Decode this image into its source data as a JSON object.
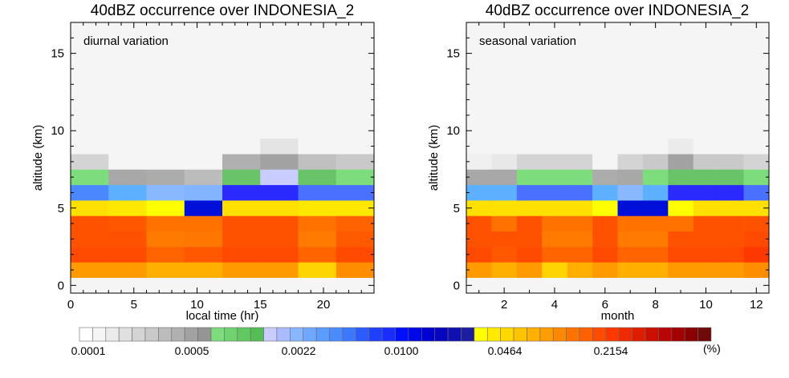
{
  "colors": {
    "background_cell": "#f5f5f5",
    "cb_palette": [
      "#ffffff",
      "#f5f5f5",
      "#ebebeb",
      "#e0e0e0",
      "#d4d4d4",
      "#c9c9c9",
      "#bcbcbc",
      "#b0b0b0",
      "#a2a2a2",
      "#959595",
      "#7ddd7d",
      "#6fd36f",
      "#62c862",
      "#55bd55",
      "#c9ccff",
      "#a9bcff",
      "#8ab5ff",
      "#70a8ff",
      "#5a9cff",
      "#4a8cff",
      "#3c78ff",
      "#2c5cff",
      "#2040ff",
      "#1a2dff",
      "#0010ff",
      "#0008e8",
      "#0000d0",
      "#0606bf",
      "#1010b0",
      "#1d1da0",
      "#ffff00",
      "#ffea00",
      "#ffd800",
      "#ffc400",
      "#ffb000",
      "#ff9c00",
      "#ff8800",
      "#ff7400",
      "#ff6000",
      "#ff4c00",
      "#ff3800",
      "#f02a00",
      "#e01c00",
      "#cc1000",
      "#b80606",
      "#a40000",
      "#8a0000",
      "#6e0a0a"
    ]
  },
  "colorbar": {
    "tick_labels": [
      "0.0001",
      "0.0005",
      "0.0022",
      "0.0100",
      "0.0464",
      "0.2154"
    ],
    "unit": "(%)"
  },
  "chart_data": [
    {
      "type": "heatmap",
      "title": "40dBZ occurrence over INDONESIA_2",
      "annotation": "diurnal variation",
      "xlabel": "local time (hr)",
      "ylabel": "altitude (km)",
      "xlim": [
        0,
        24
      ],
      "ylim": [
        -0.5,
        17
      ],
      "xticks": [
        0,
        5,
        10,
        15,
        20
      ],
      "yticks": [
        0,
        5,
        10,
        15
      ],
      "x_bins": [
        0,
        3,
        6,
        9,
        12,
        15,
        18,
        21,
        24
      ],
      "y_bins": [
        0.5,
        1.5,
        2.5,
        3.5,
        4.5,
        5.5,
        6.5,
        7.5,
        8.5,
        9.5,
        17
      ],
      "cells": [
        [
          "#ff9a00",
          "#ff9a00",
          "#ffaf00",
          "#ffaf00",
          "#ff9a00",
          "#ff9a00",
          "#ffd400",
          "#ff8d00"
        ],
        [
          "#ff4a00",
          "#ff4a00",
          "#ff6400",
          "#ff5800",
          "#ff4a00",
          "#ff4a00",
          "#ff6400",
          "#ff4a00"
        ],
        [
          "#ff5200",
          "#ff5200",
          "#ff7a00",
          "#ff7600",
          "#ff5200",
          "#ff5200",
          "#ff7a00",
          "#ff5a00"
        ],
        [
          "#ff5200",
          "#ff5600",
          "#ff7200",
          "#ff7200",
          "#ff5200",
          "#ff5200",
          "#ff7200",
          "#ff6200"
        ],
        [
          "#ffe000",
          "#ffe800",
          "#ffff00",
          "#0010d8",
          "#ffe000",
          "#ffe000",
          "#ffe800",
          "#ffe800"
        ],
        [
          "#4a88ff",
          "#5cb0ff",
          "#8ab8ff",
          "#82b4ff",
          "#2a2aff",
          "#2a2aff",
          "#4a70ff",
          "#4a70ff"
        ],
        [
          "#7ddd7d",
          "#a8a8a8",
          "#acacac",
          "#bcbcbc",
          "#69c469",
          "#c9ccff",
          "#69c469",
          "#7ddd7d"
        ],
        [
          "#d4d4d4",
          "#f5f5f5",
          "#f5f5f5",
          "#f5f5f5",
          "#b0b0b0",
          "#a2a2a2",
          "#c0c0c0",
          "#c9c9c9"
        ],
        [
          "#f5f5f5",
          "#f5f5f5",
          "#f5f5f5",
          "#f5f5f5",
          "#f5f5f5",
          "#e4e4e4",
          "#f5f5f5",
          "#f5f5f5"
        ],
        [
          "#f5f5f5",
          "#f5f5f5",
          "#f5f5f5",
          "#f5f5f5",
          "#f5f5f5",
          "#f5f5f5",
          "#f5f5f5",
          "#f5f5f5"
        ]
      ]
    },
    {
      "type": "heatmap",
      "title": "40dBZ occurrence over INDONESIA_2",
      "annotation": "seasonal variation",
      "xlabel": "month",
      "ylabel": "altitude (km)",
      "xlim": [
        0.5,
        12.5
      ],
      "ylim": [
        -0.5,
        17
      ],
      "xticks": [
        2,
        4,
        6,
        8,
        10,
        12
      ],
      "yticks": [
        0,
        5,
        10,
        15
      ],
      "x_bins": [
        0.5,
        1.5,
        2.5,
        3.5,
        4.5,
        5.5,
        6.5,
        7.5,
        8.5,
        9.5,
        10.5,
        11.5,
        12.5
      ],
      "y_bins": [
        0.5,
        1.5,
        2.5,
        3.5,
        4.5,
        5.5,
        6.5,
        7.5,
        8.5,
        9.5,
        17
      ],
      "cells": [
        [
          "#ff9a00",
          "#ffaf00",
          "#ff9a00",
          "#ffd400",
          "#ffaf00",
          "#ff9a00",
          "#ffaf00",
          "#ffaf00",
          "#ff9a00",
          "#ff9a00",
          "#ff9a00",
          "#ff8d00"
        ],
        [
          "#ff4a00",
          "#ff5800",
          "#ff4a00",
          "#ff6400",
          "#ff6400",
          "#ff4a00",
          "#ff6400",
          "#ff6400",
          "#ff4a00",
          "#ff4a00",
          "#ff4a00",
          "#ff3800"
        ],
        [
          "#ff5200",
          "#ff5200",
          "#ff5200",
          "#ff7a00",
          "#ff7a00",
          "#ff5200",
          "#ff7a00",
          "#ff7a00",
          "#ff5200",
          "#ff5200",
          "#ff5200",
          "#ff4a00"
        ],
        [
          "#ff5200",
          "#ff7200",
          "#ff5200",
          "#ff7200",
          "#ff7200",
          "#ff5200",
          "#ff7200",
          "#ff7200",
          "#ff7200",
          "#ff5200",
          "#ff5200",
          "#ff5200"
        ],
        [
          "#ffe000",
          "#ffe000",
          "#ffe000",
          "#ffe000",
          "#ffe000",
          "#ffff00",
          "#0010d8",
          "#0010d8",
          "#ffff00",
          "#ffe000",
          "#ffe000",
          "#ffe000"
        ],
        [
          "#5cb0ff",
          "#5cb0ff",
          "#4a70ff",
          "#4a70ff",
          "#4a70ff",
          "#5cb0ff",
          "#8ab8ff",
          "#5cb0ff",
          "#2a2aff",
          "#2a2aff",
          "#2a2aff",
          "#4a70ff"
        ],
        [
          "#a8a8a8",
          "#a8a8a8",
          "#7ddd7d",
          "#7ddd7d",
          "#7ddd7d",
          "#acacac",
          "#a8a8a8",
          "#7ddd7d",
          "#69c469",
          "#69c469",
          "#69c469",
          "#7ddd7d"
        ],
        [
          "#f0f0f0",
          "#e8e8e8",
          "#d4d4d4",
          "#d4d4d4",
          "#d4d4d4",
          "#f5f5f5",
          "#d4d4d4",
          "#c9c9c9",
          "#a2a2a2",
          "#c9c9c9",
          "#c9c9c9",
          "#d4d4d4"
        ],
        [
          "#f5f5f5",
          "#f5f5f5",
          "#f5f5f5",
          "#f5f5f5",
          "#f5f5f5",
          "#f5f5f5",
          "#f5f5f5",
          "#f5f5f5",
          "#ebebeb",
          "#f5f5f5",
          "#f5f5f5",
          "#f5f5f5"
        ],
        [
          "#f5f5f5",
          "#f5f5f5",
          "#f5f5f5",
          "#f5f5f5",
          "#f5f5f5",
          "#f5f5f5",
          "#f5f5f5",
          "#f5f5f5",
          "#f5f5f5",
          "#f5f5f5",
          "#f5f5f5",
          "#f5f5f5"
        ]
      ]
    }
  ]
}
